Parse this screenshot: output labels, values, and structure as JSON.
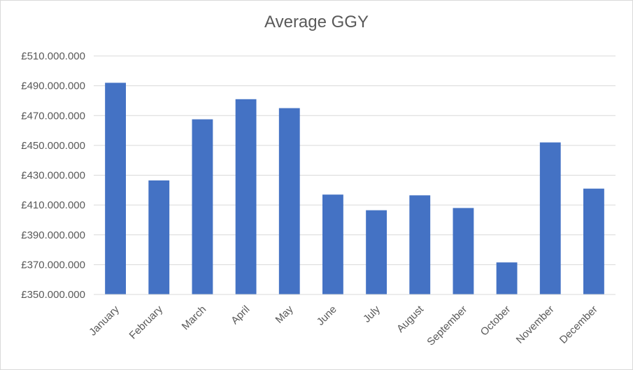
{
  "chart_data": {
    "type": "bar",
    "title": "Average GGY",
    "xlabel": "",
    "ylabel": "",
    "categories": [
      "January",
      "February",
      "March",
      "April",
      "May",
      "June",
      "July",
      "August",
      "September",
      "October",
      "November",
      "December"
    ],
    "values": [
      492000000,
      426500000,
      467500000,
      481000000,
      475000000,
      417000000,
      406500000,
      416500000,
      408000000,
      371500000,
      452000000,
      421000000
    ],
    "ylim": [
      350000000,
      510000000
    ],
    "yticks": [
      350000000,
      370000000,
      390000000,
      410000000,
      430000000,
      450000000,
      470000000,
      490000000,
      510000000
    ],
    "ytick_labels": [
      "£350.000.000",
      "£370.000.000",
      "£390.000.000",
      "£410.000.000",
      "£430.000.000",
      "£450.000.000",
      "£470.000.000",
      "£490.000.000",
      "£510.000.000"
    ],
    "grid": true,
    "legend": "none",
    "bar_color": "#4472c4",
    "grid_color": "#d9d9d9",
    "text_color": "#595959"
  }
}
